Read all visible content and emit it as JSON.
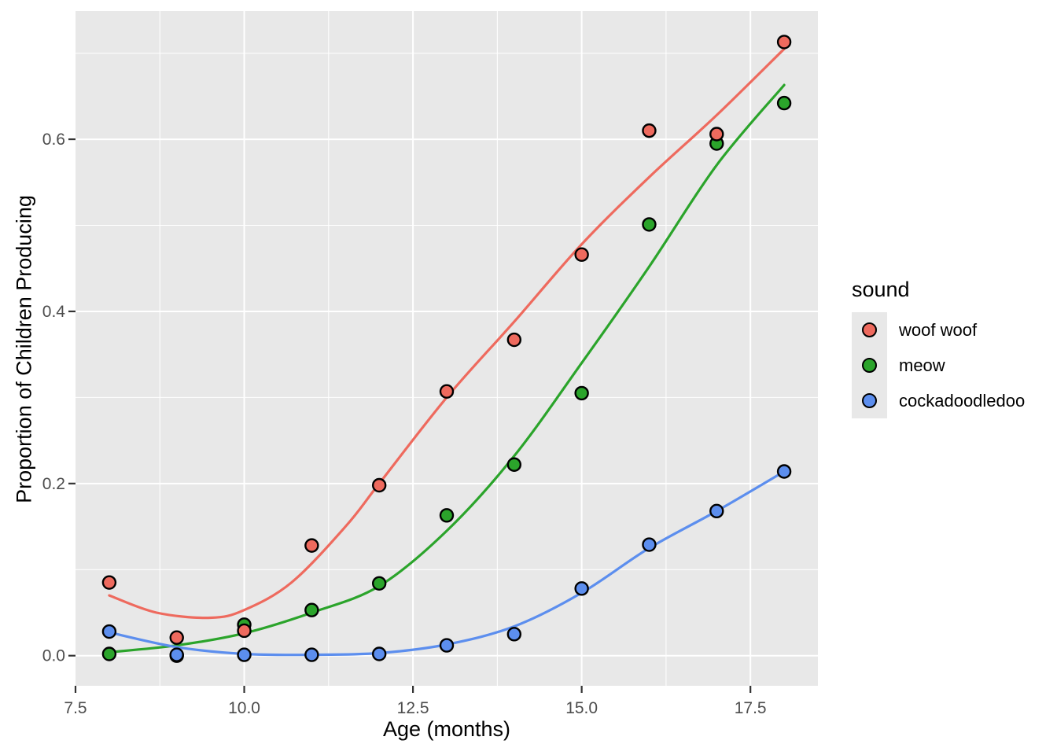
{
  "chart_data": {
    "type": "scatter",
    "subtype": "scatter points with loess smooth curves (ggplot2 style)",
    "title": "",
    "xlabel": "Age (months)",
    "ylabel": "Proportion of Children Producing",
    "xlim": [
      7.5,
      18.5
    ],
    "ylim": [
      -0.035,
      0.749
    ],
    "x_ticks": {
      "values": [
        7.5,
        10,
        12.5,
        15,
        17.5
      ],
      "labels": [
        "7.5",
        "10.0",
        "12.5",
        "15.0",
        "17.5"
      ]
    },
    "y_ticks": {
      "values": [
        0,
        0.2,
        0.4,
        0.6
      ],
      "labels": [
        "0.0",
        "0.2",
        "0.4",
        "0.6"
      ]
    },
    "x_minor_gridlines": [
      8.75,
      11.25,
      13.75,
      16.25
    ],
    "y_minor_gridlines": [
      0.1,
      0.3,
      0.5,
      0.7
    ],
    "grid": "white major and minor gridlines on grey panel",
    "legend": {
      "title": "sound",
      "position": "right",
      "items": [
        {
          "label": "woof woof",
          "color": "#EE6A5E"
        },
        {
          "label": "meow",
          "color": "#2BA42B"
        },
        {
          "label": "cockadoodledoo",
          "color": "#5C8EEE"
        }
      ]
    },
    "series": [
      {
        "name": "woof woof",
        "color": "#EE6A5E",
        "points": [
          [
            8,
            0.085
          ],
          [
            9,
            0.021
          ],
          [
            10,
            0.029
          ],
          [
            11,
            0.128
          ],
          [
            12,
            0.198
          ],
          [
            13,
            0.307
          ],
          [
            14,
            0.367
          ],
          [
            15,
            0.466
          ],
          [
            16,
            0.61
          ],
          [
            17,
            0.606
          ],
          [
            18,
            0.713
          ]
        ],
        "smooth": [
          [
            8,
            0.07
          ],
          [
            8.7,
            0.05
          ],
          [
            9.5,
            0.044
          ],
          [
            10,
            0.053
          ],
          [
            10.7,
            0.085
          ],
          [
            11.5,
            0.15
          ],
          [
            12,
            0.2
          ],
          [
            13,
            0.3
          ],
          [
            14,
            0.388
          ],
          [
            15,
            0.478
          ],
          [
            16,
            0.556
          ],
          [
            17,
            0.628
          ],
          [
            18,
            0.705
          ]
        ]
      },
      {
        "name": "meow",
        "color": "#2BA42B",
        "points": [
          [
            8,
            0.002
          ],
          [
            9,
            0.0
          ],
          [
            10,
            0.036
          ],
          [
            11,
            0.053
          ],
          [
            12,
            0.084
          ],
          [
            13,
            0.163
          ],
          [
            14,
            0.222
          ],
          [
            15,
            0.305
          ],
          [
            16,
            0.501
          ],
          [
            17,
            0.595
          ],
          [
            18,
            0.642
          ]
        ],
        "smooth": [
          [
            8,
            0.004
          ],
          [
            9,
            0.012
          ],
          [
            10,
            0.026
          ],
          [
            11,
            0.05
          ],
          [
            12,
            0.081
          ],
          [
            13,
            0.145
          ],
          [
            14,
            0.232
          ],
          [
            15,
            0.34
          ],
          [
            16,
            0.452
          ],
          [
            17,
            0.57
          ],
          [
            18,
            0.663
          ]
        ]
      },
      {
        "name": "cockadoodledoo",
        "color": "#5C8EEE",
        "points": [
          [
            8,
            0.028
          ],
          [
            9,
            0.001
          ],
          [
            10,
            0.001
          ],
          [
            11,
            0.001
          ],
          [
            12,
            0.002
          ],
          [
            13,
            0.012
          ],
          [
            14,
            0.025
          ],
          [
            15,
            0.078
          ],
          [
            16,
            0.129
          ],
          [
            17,
            0.168
          ],
          [
            18,
            0.214
          ]
        ],
        "smooth": [
          [
            8,
            0.027
          ],
          [
            9,
            0.01
          ],
          [
            10,
            0.002
          ],
          [
            11,
            0.001
          ],
          [
            12,
            0.003
          ],
          [
            13,
            0.013
          ],
          [
            14,
            0.034
          ],
          [
            15,
            0.073
          ],
          [
            16,
            0.125
          ],
          [
            17,
            0.168
          ],
          [
            18,
            0.214
          ]
        ]
      }
    ],
    "draw_order": [
      "meow",
      "woof woof",
      "cockadoodledoo"
    ]
  },
  "colors": {
    "panel_background": "#E8E8E8",
    "gridline": "#FFFFFF",
    "tick_mark": "#333333",
    "tick_label": "#4D4D4D",
    "axis_title": "#000000",
    "point_stroke": "#000000",
    "figure_background": "#FFFFFF"
  }
}
